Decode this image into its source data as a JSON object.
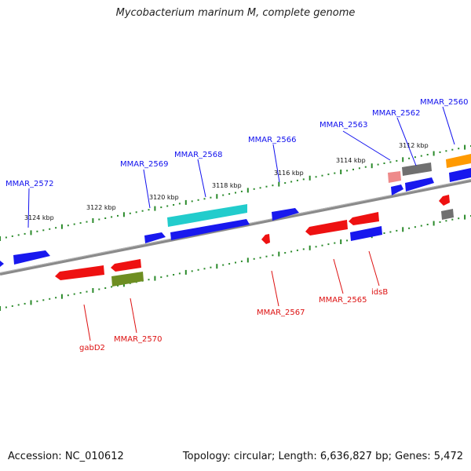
{
  "title": "Mycobacterium marinum M, complete genome",
  "footer": {
    "accession": "Accession: NC_010612",
    "stats": "Topology: circular; Length: 6,636,827 bp; Genes: 5,472"
  },
  "colors": {
    "forward_label": "#1010ee",
    "reverse_label": "#dd1111",
    "backbone": "#8a8a8a",
    "tick": "#2a8a2a",
    "blue": "#1818ee",
    "red": "#ee1111",
    "cyan": "#22cccc",
    "olive": "#6e8e22",
    "gray": "#707070",
    "pink": "#ee8a8a",
    "orange": "#ff9a00"
  },
  "ticks": [
    {
      "label": "3124 kbp"
    },
    {
      "label": "3122 kbp"
    },
    {
      "label": "3120 kbp"
    },
    {
      "label": "3118 kbp"
    },
    {
      "label": "3116 kbp"
    },
    {
      "label": "3114 kbp"
    },
    {
      "label": "3112 kbp"
    }
  ],
  "forward_labels": [
    {
      "text": "MMAR_2572"
    },
    {
      "text": "MMAR_2569"
    },
    {
      "text": "MMAR_2568"
    },
    {
      "text": "MMAR_2566"
    },
    {
      "text": "MMAR_2563"
    },
    {
      "text": "MMAR_2562"
    },
    {
      "text": "MMAR_2560"
    }
  ],
  "reverse_labels": [
    {
      "text": "gabD2"
    },
    {
      "text": "MMAR_2570"
    },
    {
      "text": "MMAR_2567"
    },
    {
      "text": "MMAR_2565"
    },
    {
      "text": "idsB"
    }
  ]
}
